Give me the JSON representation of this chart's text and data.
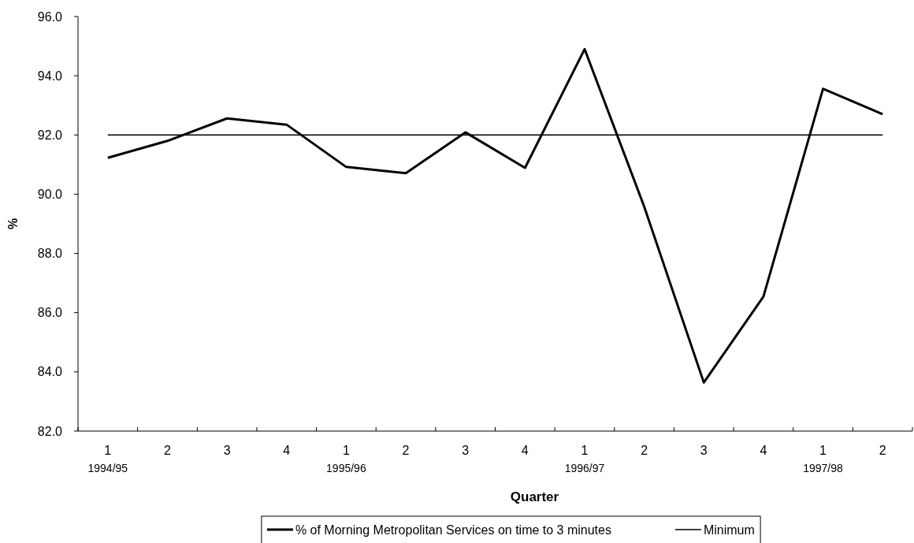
{
  "chart_data": {
    "type": "line",
    "xlabel": "Quarter",
    "ylabel": "%",
    "categories": [
      "1\n1994/95",
      "2",
      "3",
      "4",
      "1\n1995/96",
      "2",
      "3",
      "4",
      "1\n1996/97",
      "2",
      "3",
      "4",
      "1\n1997/98",
      "2"
    ],
    "series": [
      {
        "name": "% of Morning Metropolitan Services on time to 3 minutes",
        "color": "#000000",
        "values": [
          91.23,
          91.8,
          92.56,
          92.35,
          90.92,
          90.71,
          92.09,
          90.89,
          94.9,
          89.58,
          83.64,
          86.54,
          93.56,
          92.7
        ]
      },
      {
        "name": "Minimum",
        "color": "#000000",
        "line_style": "solid",
        "values": [
          92,
          92,
          92,
          92,
          92,
          92,
          92,
          92,
          92,
          92,
          92,
          92,
          92,
          92
        ]
      }
    ],
    "ylim": [
      82,
      96
    ],
    "yticks": [
      {
        "value": 82,
        "label": "82.0"
      },
      {
        "value": 84,
        "label": "84.0"
      },
      {
        "value": 86,
        "label": "86.0"
      },
      {
        "value": 88,
        "label": "88.0"
      },
      {
        "value": 90,
        "label": "90.0"
      },
      {
        "value": 92,
        "label": "92.0"
      },
      {
        "value": 94,
        "label": "94.0"
      },
      {
        "value": 96,
        "label": "96.0"
      }
    ],
    "grid": false,
    "legend": "bottom",
    "marker": "none"
  }
}
